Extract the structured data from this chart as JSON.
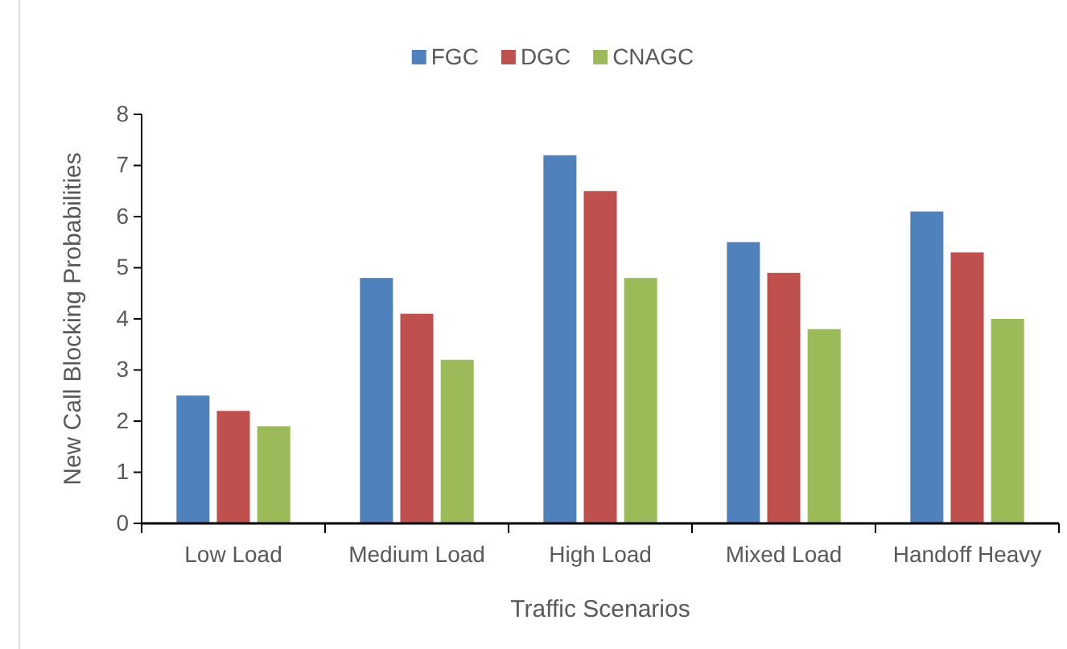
{
  "chart_data": {
    "type": "bar",
    "xlabel": "Traffic Scenarios",
    "ylabel": "New Call Blocking Probabilities",
    "categories": [
      "Low Load",
      "Medium Load",
      "High Load",
      "Mixed Load",
      "Handoff Heavy"
    ],
    "series": [
      {
        "name": "FGC",
        "color": "#4f81bd",
        "values": [
          2.5,
          4.8,
          7.2,
          5.5,
          6.1
        ]
      },
      {
        "name": "DGC",
        "color": "#c0504d",
        "values": [
          2.2,
          4.1,
          6.5,
          4.9,
          5.3
        ]
      },
      {
        "name": "CNAGC",
        "color": "#9bbb59",
        "values": [
          1.9,
          3.2,
          4.8,
          3.8,
          4.0
        ]
      }
    ],
    "ylim": [
      0,
      8
    ],
    "yticks": [
      0,
      1,
      2,
      3,
      4,
      5,
      6,
      7,
      8
    ],
    "grid": false,
    "legend": "top"
  }
}
